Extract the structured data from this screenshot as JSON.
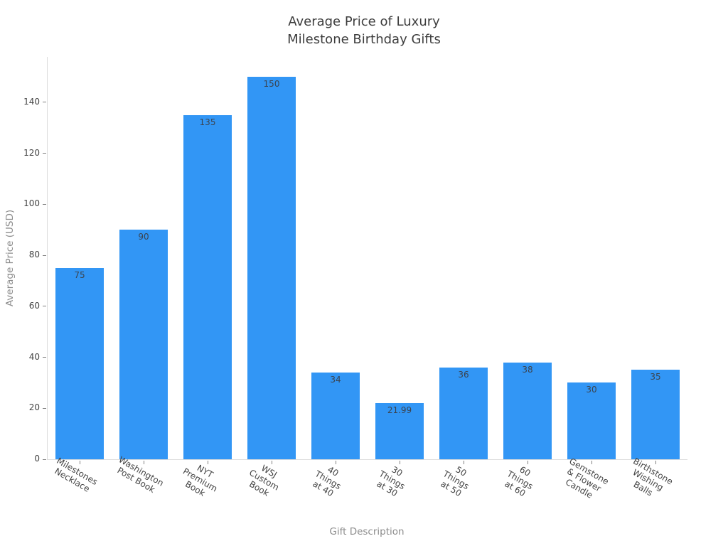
{
  "chart_data": {
    "type": "bar",
    "title": "Average Price of Luxury\nMilestone Birthday Gifts",
    "xlabel": "Gift Description",
    "ylabel": "Average Price (USD)",
    "categories": [
      "Milestones\nNecklace",
      "Washington\nPost Book",
      "NYT Premium\nBook",
      "WSJ Custom\nBook",
      "40 Things\nat 40",
      "30 Things\nat 30",
      "50 Things\nat 50",
      "60 Things\nat 60",
      "Gemstone\n& Flower Candle",
      "Birthstone\nWishing Balls"
    ],
    "values": [
      75,
      90,
      135,
      150,
      34,
      21.99,
      36,
      38,
      30,
      35
    ],
    "value_labels": [
      "75",
      "90",
      "135",
      "150",
      "34",
      "21.99",
      "36",
      "38",
      "30",
      "35"
    ],
    "yticks": [
      0,
      20,
      40,
      60,
      80,
      100,
      120,
      140
    ],
    "ylim": [
      0,
      157.8
    ],
    "grid": false,
    "legend": null,
    "colors": {
      "bar": "#3296f5",
      "tick_text": "#444444",
      "value_text": "#3b4450",
      "axis_title_text": "#8c8c8c",
      "title_text": "#3d3d3d",
      "spine": "#dcdcdc",
      "tick_mark": "#808080",
      "background": "#ffffff"
    }
  }
}
